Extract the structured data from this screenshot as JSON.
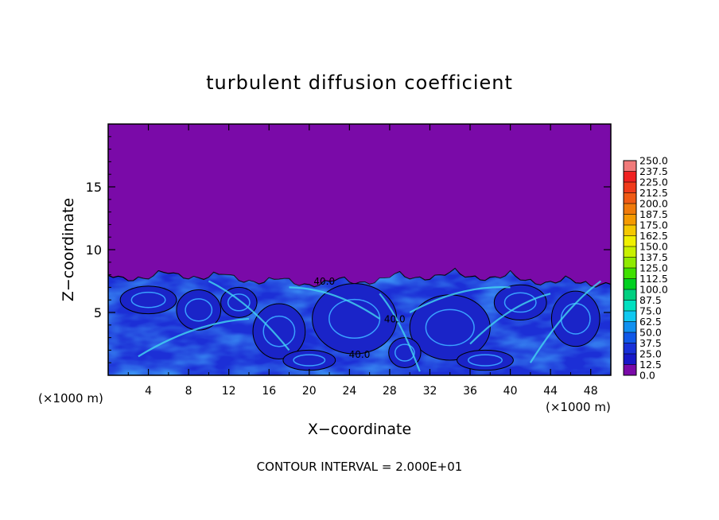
{
  "chart_data": {
    "type": "heatmap",
    "title": "turbulent diffusion coefficient",
    "xlabel": "X−coordinate",
    "ylabel": "Z−coordinate",
    "x_unit": "(×1000 m)",
    "y_unit": "(×1000 m)",
    "xlim": [
      0,
      50
    ],
    "ylim": [
      0,
      20
    ],
    "x_ticks": [
      4,
      8,
      12,
      16,
      20,
      24,
      28,
      32,
      36,
      40,
      44,
      48
    ],
    "y_ticks": [
      5,
      10,
      15
    ],
    "footer": "CONTOUR INTERVAL = 2.000E+01",
    "contour_labels": [
      {
        "text": "40.0",
        "x": 21.5,
        "z": 7.2
      },
      {
        "text": "40.0",
        "x": 28.5,
        "z": 4.2
      },
      {
        "text": "40.0",
        "x": 25.0,
        "z": 1.4
      }
    ],
    "turbulent_layer_top": 8.3,
    "colorbar": {
      "levels": [
        "250.0",
        "237.5",
        "225.0",
        "212.5",
        "200.0",
        "187.5",
        "175.0",
        "162.5",
        "150.0",
        "137.5",
        "125.0",
        "112.5",
        "100.0",
        "87.5",
        "75.0",
        "62.5",
        "50.0",
        "37.5",
        "25.0",
        "12.5",
        "0.0"
      ],
      "colors": [
        "#f07a7a",
        "#f02020",
        "#f03a1a",
        "#f05a14",
        "#f07a0a",
        "#f59a00",
        "#f5c800",
        "#f0f000",
        "#c8f000",
        "#90ea00",
        "#40e000",
        "#00d020",
        "#00d080",
        "#00e0c0",
        "#10c8f0",
        "#1090f0",
        "#1058e8",
        "#1830d8",
        "#1818c8",
        "#7a0aa8"
      ]
    }
  }
}
